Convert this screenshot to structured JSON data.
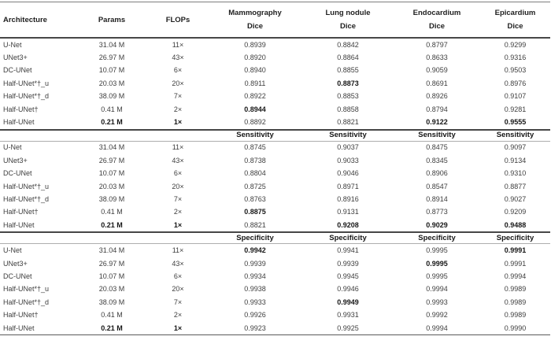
{
  "table": {
    "columns": [
      {
        "key": "arch",
        "label": "Architecture",
        "sub": null
      },
      {
        "key": "params",
        "label": "Params",
        "sub": null
      },
      {
        "key": "flops",
        "label": "FLOPs",
        "sub": null
      },
      {
        "key": "m1",
        "label": "Mammography",
        "sub": "Dice"
      },
      {
        "key": "m2",
        "label": "Lung nodule",
        "sub": "Dice"
      },
      {
        "key": "m3",
        "label": "Endocardium",
        "sub": "Dice"
      },
      {
        "key": "m4",
        "label": "Epicardium",
        "sub": "Dice"
      }
    ],
    "sections": [
      {
        "metric": "Dice",
        "subheader": null,
        "rows": [
          {
            "arch": "U-Net",
            "params": "31.04 M",
            "flops": "11×",
            "bold_pf": false,
            "values": [
              "0.8939",
              "0.8842",
              "0.8797",
              "0.9299"
            ],
            "bold": [
              0,
              0,
              0,
              0
            ]
          },
          {
            "arch": "UNet3+",
            "params": "26.97 M",
            "flops": "43×",
            "bold_pf": false,
            "values": [
              "0.8920",
              "0.8864",
              "0.8633",
              "0.9316"
            ],
            "bold": [
              0,
              0,
              0,
              0
            ]
          },
          {
            "arch": "DC-UNet",
            "params": "10.07 M",
            "flops": "6×",
            "bold_pf": false,
            "values": [
              "0.8940",
              "0.8855",
              "0.9059",
              "0.9503"
            ],
            "bold": [
              0,
              0,
              0,
              0
            ]
          },
          {
            "arch": "Half-UNet*†_u",
            "params": "20.03 M",
            "flops": "20×",
            "bold_pf": false,
            "values": [
              "0.8911",
              "0.8873",
              "0.8691",
              "0.8976"
            ],
            "bold": [
              0,
              1,
              0,
              0
            ]
          },
          {
            "arch": "Half-UNet*†_d",
            "params": "38.09 M",
            "flops": "7×",
            "bold_pf": false,
            "values": [
              "0.8922",
              "0.8853",
              "0.8926",
              "0.9107"
            ],
            "bold": [
              0,
              0,
              0,
              0
            ]
          },
          {
            "arch": "Half-UNet†",
            "params": "0.41 M",
            "flops": "2×",
            "bold_pf": false,
            "values": [
              "0.8944",
              "0.8858",
              "0.8794",
              "0.9281"
            ],
            "bold": [
              1,
              0,
              0,
              0
            ]
          },
          {
            "arch": "Half-UNet",
            "params": "0.21 M",
            "flops": "1×",
            "bold_pf": true,
            "values": [
              "0.8892",
              "0.8821",
              "0.9122",
              "0.9555"
            ],
            "bold": [
              0,
              0,
              1,
              1
            ]
          }
        ]
      },
      {
        "metric": "Sensitivity",
        "subheader": "Sensitivity",
        "rows": [
          {
            "arch": "U-Net",
            "params": "31.04 M",
            "flops": "11×",
            "bold_pf": false,
            "values": [
              "0.8745",
              "0.9037",
              "0.8475",
              "0.9097"
            ],
            "bold": [
              0,
              0,
              0,
              0
            ]
          },
          {
            "arch": "UNet3+",
            "params": "26.97 M",
            "flops": "43×",
            "bold_pf": false,
            "values": [
              "0.8738",
              "0.9033",
              "0.8345",
              "0.9134"
            ],
            "bold": [
              0,
              0,
              0,
              0
            ]
          },
          {
            "arch": "DC-UNet",
            "params": "10.07 M",
            "flops": "6×",
            "bold_pf": false,
            "values": [
              "0.8804",
              "0.9046",
              "0.8906",
              "0.9310"
            ],
            "bold": [
              0,
              0,
              0,
              0
            ]
          },
          {
            "arch": "Half-UNet*†_u",
            "params": "20.03 M",
            "flops": "20×",
            "bold_pf": false,
            "values": [
              "0.8725",
              "0.8971",
              "0.8547",
              "0.8877"
            ],
            "bold": [
              0,
              0,
              0,
              0
            ]
          },
          {
            "arch": "Half-UNet*†_d",
            "params": "38.09 M",
            "flops": "7×",
            "bold_pf": false,
            "values": [
              "0.8763",
              "0.8916",
              "0.8914",
              "0.9027"
            ],
            "bold": [
              0,
              0,
              0,
              0
            ]
          },
          {
            "arch": "Half-UNet†",
            "params": "0.41 M",
            "flops": "2×",
            "bold_pf": false,
            "values": [
              "0.8875",
              "0.9131",
              "0.8773",
              "0.9209"
            ],
            "bold": [
              1,
              0,
              0,
              0
            ]
          },
          {
            "arch": "Half-UNet",
            "params": "0.21 M",
            "flops": "1×",
            "bold_pf": true,
            "values": [
              "0.8821",
              "0.9208",
              "0.9029",
              "0.9488"
            ],
            "bold": [
              0,
              1,
              1,
              1
            ]
          }
        ]
      },
      {
        "metric": "Specificity",
        "subheader": "Specificity",
        "rows": [
          {
            "arch": "U-Net",
            "params": "31.04 M",
            "flops": "11×",
            "bold_pf": false,
            "values": [
              "0.9942",
              "0.9941",
              "0.9995",
              "0.9991"
            ],
            "bold": [
              1,
              0,
              0,
              1
            ]
          },
          {
            "arch": "UNet3+",
            "params": "26.97 M",
            "flops": "43×",
            "bold_pf": false,
            "values": [
              "0.9939",
              "0.9939",
              "0.9995",
              "0.9991"
            ],
            "bold": [
              0,
              0,
              1,
              0
            ]
          },
          {
            "arch": "DC-UNet",
            "params": "10.07 M",
            "flops": "6×",
            "bold_pf": false,
            "values": [
              "0.9934",
              "0.9945",
              "0.9995",
              "0.9994"
            ],
            "bold": [
              0,
              0,
              0,
              0
            ]
          },
          {
            "arch": "Half-UNet*†_u",
            "params": "20.03 M",
            "flops": "20×",
            "bold_pf": false,
            "values": [
              "0.9938",
              "0.9946",
              "0.9994",
              "0.9989"
            ],
            "bold": [
              0,
              0,
              0,
              0
            ]
          },
          {
            "arch": "Half-UNet*†_d",
            "params": "38.09 M",
            "flops": "7×",
            "bold_pf": false,
            "values": [
              "0.9933",
              "0.9949",
              "0.9993",
              "0.9989"
            ],
            "bold": [
              0,
              1,
              0,
              0
            ]
          },
          {
            "arch": "Half-UNet†",
            "params": "0.41 M",
            "flops": "2×",
            "bold_pf": false,
            "values": [
              "0.9926",
              "0.9931",
              "0.9992",
              "0.9989"
            ],
            "bold": [
              0,
              0,
              0,
              0
            ]
          },
          {
            "arch": "Half-UNet",
            "params": "0.21 M",
            "flops": "1×",
            "bold_pf": true,
            "values": [
              "0.9923",
              "0.9925",
              "0.9994",
              "0.9990"
            ],
            "bold": [
              0,
              0,
              0,
              0
            ]
          }
        ]
      }
    ]
  }
}
